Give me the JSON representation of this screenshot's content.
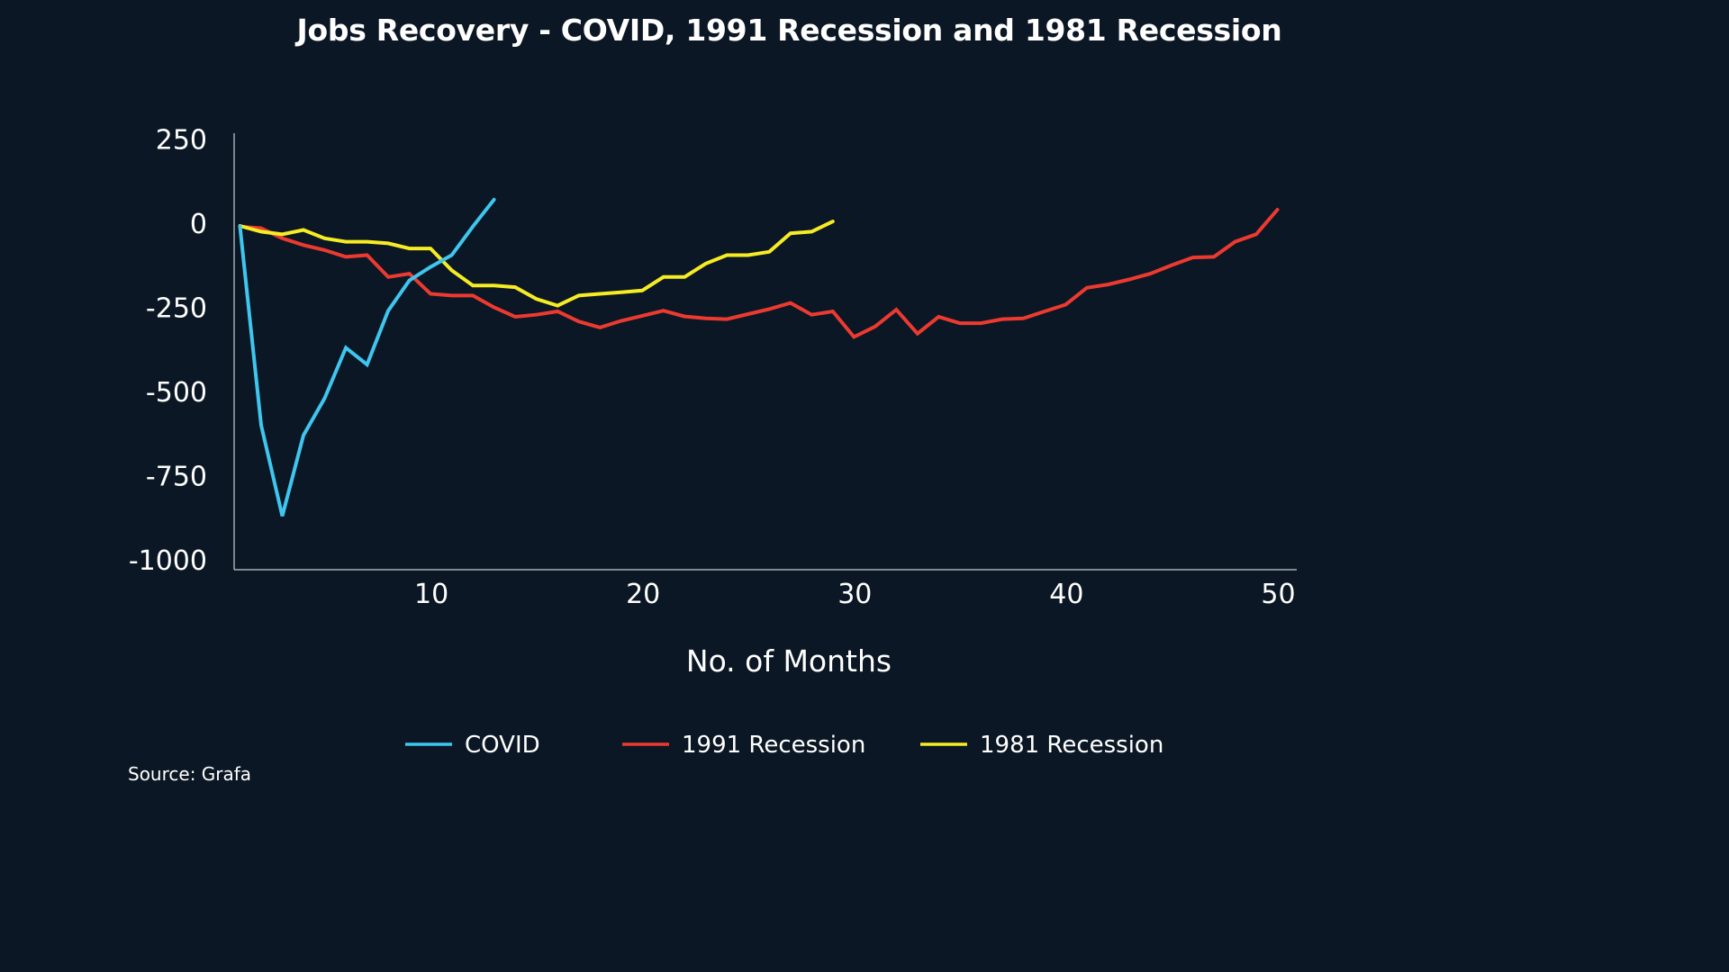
{
  "chart_data": {
    "type": "line",
    "title": "Jobs Recovery - COVID, 1991 Recession and 1981 Recession",
    "xlabel": "No. of Months",
    "ylabel": "",
    "xlim": [
      1,
      51
    ],
    "ylim": [
      -1000,
      250
    ],
    "xticks": [
      10,
      20,
      30,
      40,
      50
    ],
    "yticks": [
      250,
      0,
      -250,
      -500,
      -750,
      -1000
    ],
    "grid": false,
    "legend_position": "bottom",
    "series": [
      {
        "name": "COVID",
        "color": "#3ec6ee",
        "x": [
          1,
          2,
          3,
          4,
          5,
          6,
          7,
          8,
          9,
          10,
          11,
          12,
          13
        ],
        "values": [
          -10,
          -600,
          -870,
          -630,
          -520,
          -370,
          -420,
          -260,
          -170,
          -130,
          -95,
          -10,
          70
        ]
      },
      {
        "name": "1991 Recession",
        "color": "#ec3a30",
        "x": [
          1,
          2,
          3,
          4,
          5,
          6,
          7,
          8,
          9,
          10,
          11,
          12,
          13,
          14,
          15,
          16,
          17,
          18,
          19,
          20,
          21,
          22,
          23,
          24,
          25,
          26,
          27,
          28,
          29,
          30,
          31,
          32,
          33,
          34,
          35,
          36,
          37,
          38,
          39,
          40,
          41,
          42,
          43,
          44,
          45,
          46,
          47,
          48,
          49,
          50
        ],
        "values": [
          -10,
          -15,
          -45,
          -65,
          -80,
          -100,
          -95,
          -160,
          -150,
          -210,
          -215,
          -215,
          -250,
          -278,
          -272,
          -262,
          -292,
          -310,
          -290,
          -275,
          -260,
          -277,
          -283,
          -285,
          -270,
          -255,
          -237,
          -272,
          -262,
          -338,
          -307,
          -257,
          -328,
          -278,
          -297,
          -297,
          -285,
          -283,
          -262,
          -242,
          -192,
          -182,
          -167,
          -150,
          -125,
          -102,
          -100,
          -55,
          -33,
          40
        ]
      },
      {
        "name": "1981 Recession",
        "color": "#f6ec24",
        "x": [
          1,
          2,
          3,
          4,
          5,
          6,
          7,
          8,
          9,
          10,
          11,
          12,
          13,
          14,
          15,
          16,
          17,
          18,
          19,
          20,
          21,
          22,
          23,
          24,
          25,
          26,
          27,
          28,
          29
        ],
        "values": [
          -8,
          -25,
          -33,
          -20,
          -45,
          -55,
          -55,
          -60,
          -75,
          -75,
          -140,
          -185,
          -185,
          -190,
          -225,
          -245,
          -215,
          -210,
          -205,
          -200,
          -160,
          -160,
          -120,
          -95,
          -95,
          -85,
          -30,
          -25,
          5
        ]
      }
    ],
    "source": "Source: Grafa"
  }
}
